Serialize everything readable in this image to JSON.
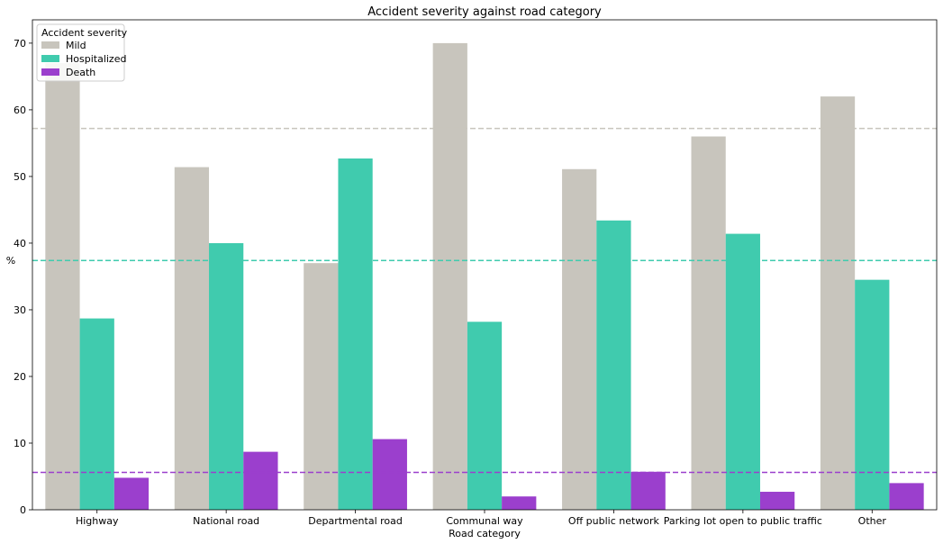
{
  "chart_data": {
    "type": "bar",
    "title": "Accident severity against road category",
    "xlabel": "Road category",
    "ylabel": "%",
    "ylim": [
      0,
      73.5
    ],
    "yticks": [
      0,
      10,
      20,
      30,
      40,
      50,
      60,
      70
    ],
    "categories": [
      "Highway",
      "National road",
      "Departmental road",
      "Communal way",
      "Off public network",
      "Parking lot open to public traffic",
      "Other"
    ],
    "series": [
      {
        "name": "Mild",
        "color": "#c8c5bd",
        "values": [
          67.0,
          51.4,
          37.0,
          70.0,
          51.1,
          56.0,
          62.0
        ]
      },
      {
        "name": "Hospitalized",
        "color": "#40cbae",
        "values": [
          28.7,
          40.0,
          52.7,
          28.2,
          43.4,
          41.4,
          34.5
        ]
      },
      {
        "name": "Death",
        "color": "#9b3fcd",
        "values": [
          4.8,
          8.7,
          10.6,
          2.0,
          5.7,
          2.7,
          4.0
        ]
      }
    ],
    "reference_lines": [
      {
        "series": "Mild",
        "value": 57.2,
        "color": "#c8c5bd",
        "style": "dashed"
      },
      {
        "series": "Hospitalized",
        "value": 37.4,
        "color": "#40cbae",
        "style": "dashed"
      },
      {
        "series": "Death",
        "value": 5.6,
        "color": "#9b3fcd",
        "style": "dashed"
      }
    ],
    "legend": {
      "title": "Accident severity",
      "placement": "top-left"
    },
    "grid": false
  }
}
